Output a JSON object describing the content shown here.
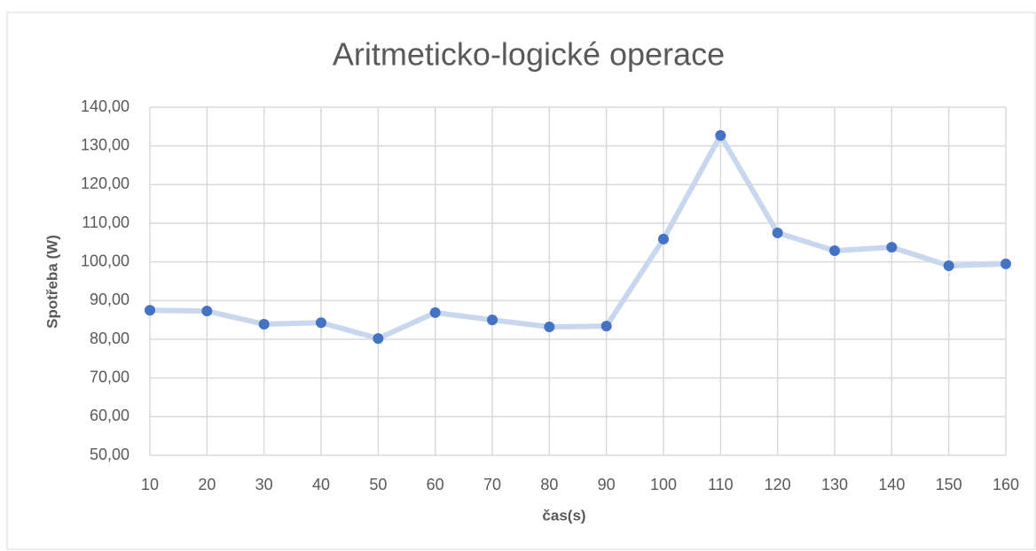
{
  "chart_data": {
    "type": "line",
    "title": "Aritmeticko-logické operace",
    "xlabel": "čas(s)",
    "ylabel": "Spotřeba (W)",
    "x": [
      10,
      20,
      30,
      40,
      50,
      60,
      70,
      80,
      90,
      100,
      110,
      120,
      130,
      140,
      150,
      160
    ],
    "series": [
      {
        "color": "#4472c4",
        "line_color": "#c9d7ee",
        "values": [
          87.5,
          87.3,
          83.9,
          84.3,
          80.2,
          86.9,
          85.0,
          83.2,
          83.4,
          105.9,
          132.7,
          107.5,
          102.9,
          103.8,
          99.0,
          99.5
        ]
      }
    ],
    "xlim": [
      10,
      160
    ],
    "xticks": [
      10,
      20,
      30,
      40,
      50,
      60,
      70,
      80,
      90,
      100,
      110,
      120,
      130,
      140,
      150,
      160
    ],
    "ylim": [
      50,
      140
    ],
    "yticks": [
      {
        "value": 50,
        "label": "50,00"
      },
      {
        "value": 60,
        "label": "60,00"
      },
      {
        "value": 70,
        "label": "70,00"
      },
      {
        "value": 80,
        "label": "80,00"
      },
      {
        "value": 90,
        "label": "90,00"
      },
      {
        "value": 100,
        "label": "100,00"
      },
      {
        "value": 110,
        "label": "110,00"
      },
      {
        "value": 120,
        "label": "120,00"
      },
      {
        "value": 130,
        "label": "130,00"
      },
      {
        "value": 140,
        "label": "140,00"
      }
    ],
    "grid": true
  }
}
